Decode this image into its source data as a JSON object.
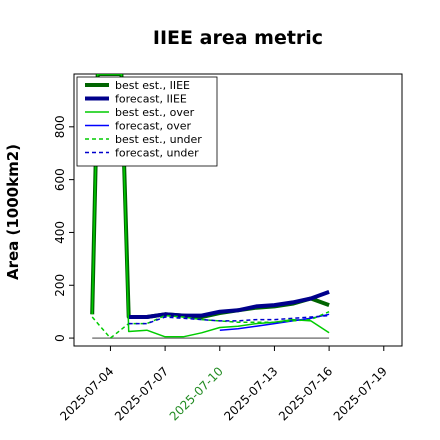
{
  "chart_data": {
    "type": "line",
    "title": "IIEE area metric",
    "xlabel": "",
    "ylabel": "Area (1000km2)",
    "x_ticks": [
      "2025-07-04",
      "2025-07-07",
      "2025-07-10",
      "2025-07-13",
      "2025-07-16",
      "2025-07-19"
    ],
    "highlight_tick": "2025-07-10",
    "highlight_color": "#228b22",
    "x_range": [
      "2025-07-02",
      "2025-07-20"
    ],
    "ylim": [
      -30,
      1000
    ],
    "y_ticks": [
      0,
      200,
      400,
      600,
      800
    ],
    "grid": false,
    "legend_position": "upper-left",
    "baseline": 0,
    "series": [
      {
        "name": "best est., IIEE",
        "color": "#006400",
        "style": "solid",
        "width": 4,
        "points": [
          [
            "2025-07-03",
            90
          ],
          [
            "2025-07-03.3",
            1000
          ],
          [
            "2025-07-04.6",
            1000
          ],
          [
            "2025-07-05",
            80
          ],
          [
            "2025-07-06",
            80
          ],
          [
            "2025-07-07",
            90
          ],
          [
            "2025-07-08",
            85
          ],
          [
            "2025-07-09",
            80
          ],
          [
            "2025-07-10",
            95
          ],
          [
            "2025-07-11",
            105
          ],
          [
            "2025-07-12",
            115
          ],
          [
            "2025-07-13",
            120
          ],
          [
            "2025-07-14",
            130
          ],
          [
            "2025-07-15",
            150
          ],
          [
            "2025-07-16",
            125
          ]
        ]
      },
      {
        "name": "forecast, IIEE",
        "color": "#00008b",
        "style": "solid",
        "width": 4,
        "points": [
          [
            "2025-07-05",
            80
          ],
          [
            "2025-07-06",
            80
          ],
          [
            "2025-07-07",
            90
          ],
          [
            "2025-07-08",
            85
          ],
          [
            "2025-07-09",
            85
          ],
          [
            "2025-07-10",
            100
          ],
          [
            "2025-07-11",
            105
          ],
          [
            "2025-07-12",
            120
          ],
          [
            "2025-07-13",
            125
          ],
          [
            "2025-07-14",
            135
          ],
          [
            "2025-07-15",
            150
          ],
          [
            "2025-07-16",
            175
          ]
        ]
      },
      {
        "name": "best est., over",
        "color": "#00cc00",
        "style": "solid",
        "width": 1.5,
        "points": [
          [
            "2025-07-03",
            90
          ],
          [
            "2025-07-03.3",
            1000
          ],
          [
            "2025-07-04.6",
            1000
          ],
          [
            "2025-07-05",
            25
          ],
          [
            "2025-07-06",
            30
          ],
          [
            "2025-07-07",
            5
          ],
          [
            "2025-07-08",
            5
          ],
          [
            "2025-07-09",
            20
          ],
          [
            "2025-07-10",
            40
          ],
          [
            "2025-07-11",
            45
          ],
          [
            "2025-07-12",
            55
          ],
          [
            "2025-07-13",
            60
          ],
          [
            "2025-07-14",
            70
          ],
          [
            "2025-07-15",
            65
          ],
          [
            "2025-07-16",
            20
          ]
        ]
      },
      {
        "name": "forecast, over",
        "color": "#0000ff",
        "style": "solid",
        "width": 1.5,
        "points": [
          [
            "2025-07-10",
            30
          ],
          [
            "2025-07-11",
            35
          ],
          [
            "2025-07-12",
            45
          ],
          [
            "2025-07-13",
            55
          ],
          [
            "2025-07-14",
            65
          ],
          [
            "2025-07-15",
            75
          ],
          [
            "2025-07-16",
            90
          ]
        ]
      },
      {
        "name": "best est., under",
        "color": "#00cc00",
        "style": "dashed",
        "width": 1.5,
        "points": [
          [
            "2025-07-03",
            80
          ],
          [
            "2025-07-04",
            0
          ],
          [
            "2025-07-05",
            55
          ],
          [
            "2025-07-06",
            55
          ],
          [
            "2025-07-07",
            85
          ],
          [
            "2025-07-08",
            80
          ],
          [
            "2025-07-09",
            70
          ],
          [
            "2025-07-10",
            65
          ],
          [
            "2025-07-11",
            60
          ],
          [
            "2025-07-12",
            60
          ],
          [
            "2025-07-13",
            60
          ],
          [
            "2025-07-14",
            65
          ],
          [
            "2025-07-15",
            70
          ],
          [
            "2025-07-16",
            100
          ]
        ]
      },
      {
        "name": "forecast, under",
        "color": "#0000cd",
        "style": "dashed",
        "width": 1.5,
        "points": [
          [
            "2025-07-05",
            55
          ],
          [
            "2025-07-06",
            55
          ],
          [
            "2025-07-07",
            80
          ],
          [
            "2025-07-08",
            75
          ],
          [
            "2025-07-09",
            70
          ],
          [
            "2025-07-10",
            65
          ],
          [
            "2025-07-11",
            65
          ],
          [
            "2025-07-12",
            70
          ],
          [
            "2025-07-13",
            70
          ],
          [
            "2025-07-14",
            75
          ],
          [
            "2025-07-15",
            80
          ],
          [
            "2025-07-16",
            85
          ]
        ]
      }
    ]
  }
}
